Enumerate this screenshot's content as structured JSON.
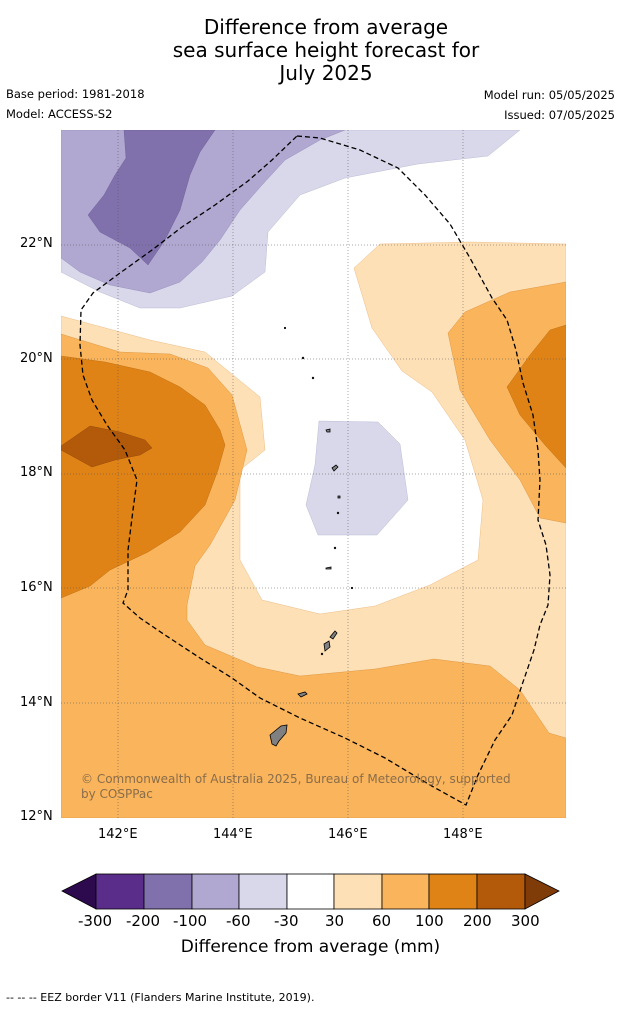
{
  "header": {
    "title_lines": [
      "Difference from average",
      "sea surface height forecast for",
      "July 2025"
    ],
    "base_period": "Base period: 1981-2018",
    "model": "Model: ACCESS-S2",
    "model_run": "Model run: 05/05/2025",
    "issued": "Issued: 07/05/2025"
  },
  "map": {
    "lat_labels": [
      "22°N",
      "20°N",
      "18°N",
      "16°N",
      "14°N",
      "12°N"
    ],
    "lon_labels": [
      "142°E",
      "144°E",
      "146°E",
      "148°E"
    ],
    "lat_range": [
      12,
      24
    ],
    "lon_range": [
      141,
      149.8
    ],
    "copyright": "© Commonwealth of Australia 2025, Bureau of Meteorology, supported by COSPPac",
    "eez_border": true,
    "grid": true
  },
  "colorbar": {
    "title": "Difference from average (mm)",
    "tick_labels": [
      "-300",
      "-200",
      "-100",
      "-60",
      "-30",
      "30",
      "60",
      "100",
      "200",
      "300"
    ],
    "colors": [
      "#2d0a4e",
      "#5a2d8a",
      "#8070ac",
      "#b0a8d0",
      "#d8d8ea",
      "#ffffff",
      "#fde0b6",
      "#f9b45c",
      "#e08316",
      "#b35a0a",
      "#7f3b08"
    ]
  },
  "footer": {
    "eez_legend": "-- -- -- EEZ border V11 (Flanders Marine Institute, 2019)."
  }
}
